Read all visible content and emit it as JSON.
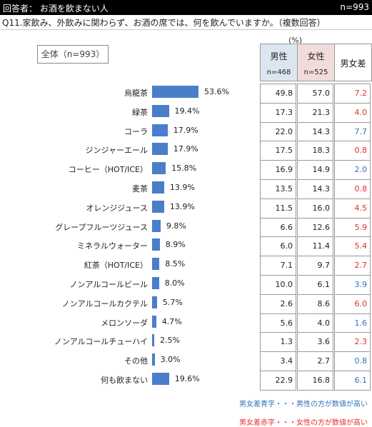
{
  "header": {
    "respondents": "回答者： お酒を飲まない人",
    "n": "n=993"
  },
  "question": "Q11.家飲み、外飲みに関わらず、お酒の席では、何を飲んでいますか。（複数回答）",
  "total_label": "全体（n=993）",
  "unit": "(%)",
  "columns": {
    "male": {
      "title": "男性",
      "n": "n=468"
    },
    "female": {
      "title": "女性",
      "n": "n=525"
    },
    "diff": {
      "title": "男女差"
    }
  },
  "chart_data": {
    "type": "bar",
    "categories": [
      "烏龍茶",
      "緑茶",
      "コーラ",
      "ジンジャーエール",
      "コーヒー（HOT/ICE）",
      "麦茶",
      "オレンジジュース",
      "グレープフルーツジュース",
      "ミネラルウォーター",
      "紅茶（HOT/ICE）",
      "ノンアルコールビール",
      "ノンアルコールカクテル",
      "メロンソーダ",
      "ノンアルコールチューハイ",
      "その他",
      "何も飲まない"
    ],
    "values": [
      53.6,
      19.4,
      17.9,
      17.9,
      15.8,
      13.9,
      13.9,
      9.8,
      8.9,
      8.5,
      8.0,
      5.7,
      4.7,
      2.5,
      3.0,
      19.6
    ],
    "value_labels": [
      "53.6%",
      "19.4%",
      "17.9%",
      "17.9%",
      "15.8%",
      "13.9%",
      "13.9%",
      "9.8%",
      "8.9%",
      "8.5%",
      "8.0%",
      "5.7%",
      "4.7%",
      "2.5%",
      "3.0%",
      "19.6%"
    ],
    "table": {
      "male": [
        "49.8",
        "17.3",
        "22.0",
        "17.5",
        "16.9",
        "13.5",
        "11.5",
        "6.6",
        "6.0",
        "7.1",
        "10.0",
        "2.6",
        "5.6",
        "1.3",
        "3.4",
        "22.9"
      ],
      "female": [
        "57.0",
        "21.3",
        "14.3",
        "18.3",
        "14.9",
        "14.3",
        "16.0",
        "12.6",
        "11.4",
        "9.7",
        "6.1",
        "8.6",
        "4.0",
        "3.6",
        "2.7",
        "16.8"
      ],
      "diff": [
        "7.2",
        "4.0",
        "7.7",
        "0.8",
        "2.0",
        "0.8",
        "4.5",
        "5.9",
        "5.4",
        "2.7",
        "3.9",
        "6.0",
        "1.6",
        "2.3",
        "0.8",
        "6.1"
      ],
      "diff_color": [
        "red",
        "red",
        "blue",
        "red",
        "blue",
        "red",
        "red",
        "red",
        "red",
        "red",
        "blue",
        "red",
        "blue",
        "red",
        "blue",
        "blue"
      ]
    }
  },
  "colors": {
    "bar": "#4a7ecb",
    "male_header": "#dce6f1",
    "female_header": "#f2dcdb",
    "blue_text": "#2e75b6",
    "red_text": "#e0302b"
  },
  "notes": {
    "blue": "男女差青字・・・男性の方が数値が高い",
    "red": "男女差赤字・・・女性の方が数値が高い"
  }
}
